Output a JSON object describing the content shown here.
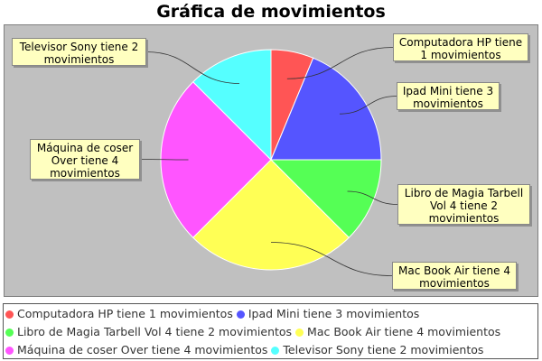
{
  "chart_data": {
    "type": "pie",
    "title": "Gráfica de movimientos",
    "slices": [
      {
        "label": "Computadora HP tiene 1 movimientos",
        "value": 1,
        "color": "#ff5555"
      },
      {
        "label": "Ipad Mini tiene 3 movimientos",
        "value": 3,
        "color": "#5555ff"
      },
      {
        "label": "Libro de Magia Tarbell Vol 4 tiene 2 movimientos",
        "value": 2,
        "color": "#55ff55"
      },
      {
        "label": "Mac Book Air tiene 4 movimientos",
        "value": 4,
        "color": "#ffff55"
      },
      {
        "label": "Máquina de coser Over tiene 4 movimientos",
        "value": 4,
        "color": "#ff55ff"
      },
      {
        "label": "Televisor Sony tiene 2 movimientos",
        "value": 2,
        "color": "#55ffff"
      }
    ],
    "legend_position": "bottom"
  }
}
